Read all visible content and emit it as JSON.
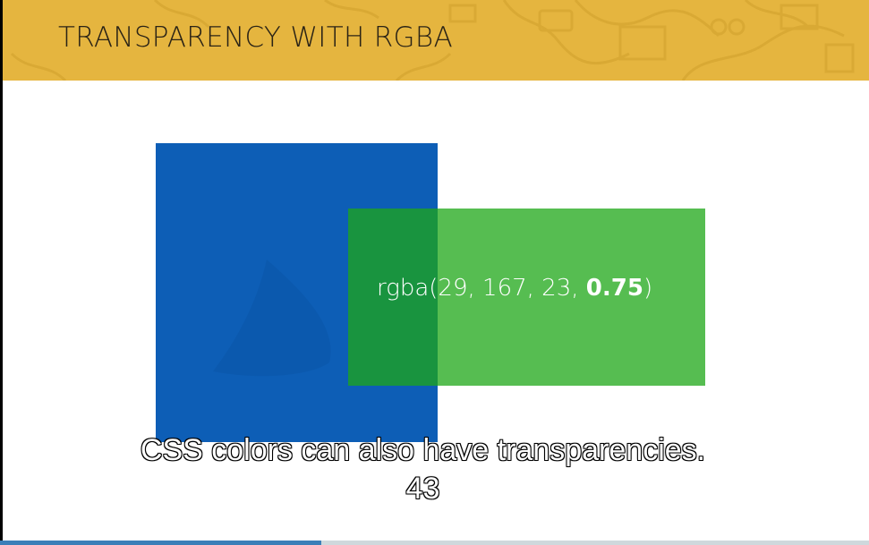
{
  "slide": {
    "title": "TRANSPARENCY WITH RGBA",
    "header_color": "#e5b53f",
    "blue_color": "#0d5eb6",
    "green_color": "rgba(29, 167, 23, 0.75)",
    "rgba_prefix": "rgba(29, 167, 23, ",
    "rgba_alpha": "0.75",
    "rgba_suffix": ")"
  },
  "captions": {
    "line1": "CSS colors can also have transparencies.",
    "line2": "43"
  },
  "player": {
    "progress_fraction": 0.37
  }
}
